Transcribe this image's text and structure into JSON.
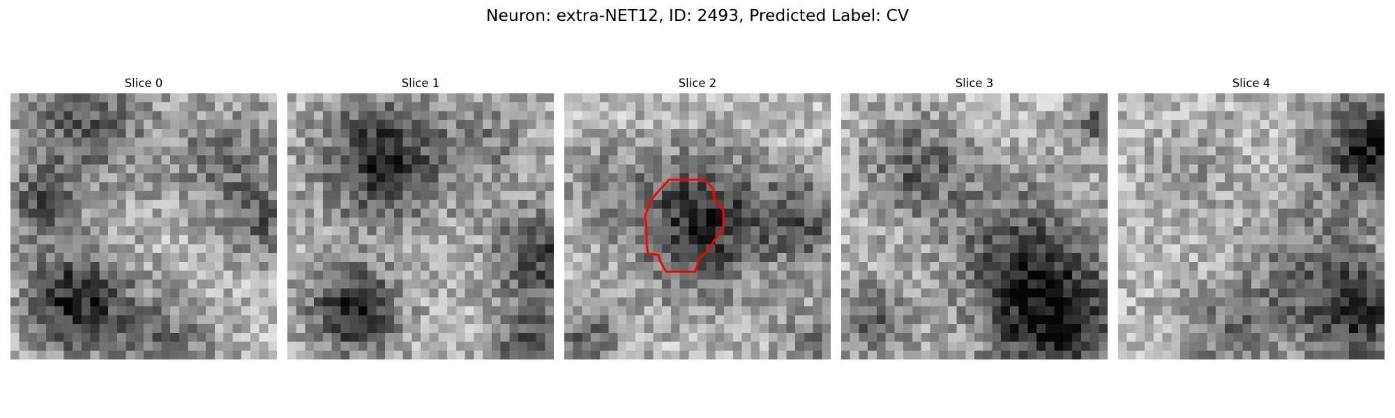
{
  "figure": {
    "title": "Neuron: extra-NET12, ID: 2493, Predicted Label: CV"
  },
  "panels": [
    {
      "title": "Slice 0",
      "image": "grayscale-patch",
      "has_contour": false
    },
    {
      "title": "Slice 1",
      "image": "grayscale-patch",
      "has_contour": false
    },
    {
      "title": "Slice 2",
      "image": "grayscale-patch",
      "has_contour": true
    },
    {
      "title": "Slice 3",
      "image": "grayscale-patch",
      "has_contour": false
    },
    {
      "title": "Slice 4",
      "image": "grayscale-patch",
      "has_contour": false
    }
  ],
  "contour_color": "#ff0000",
  "colormap": "gray"
}
